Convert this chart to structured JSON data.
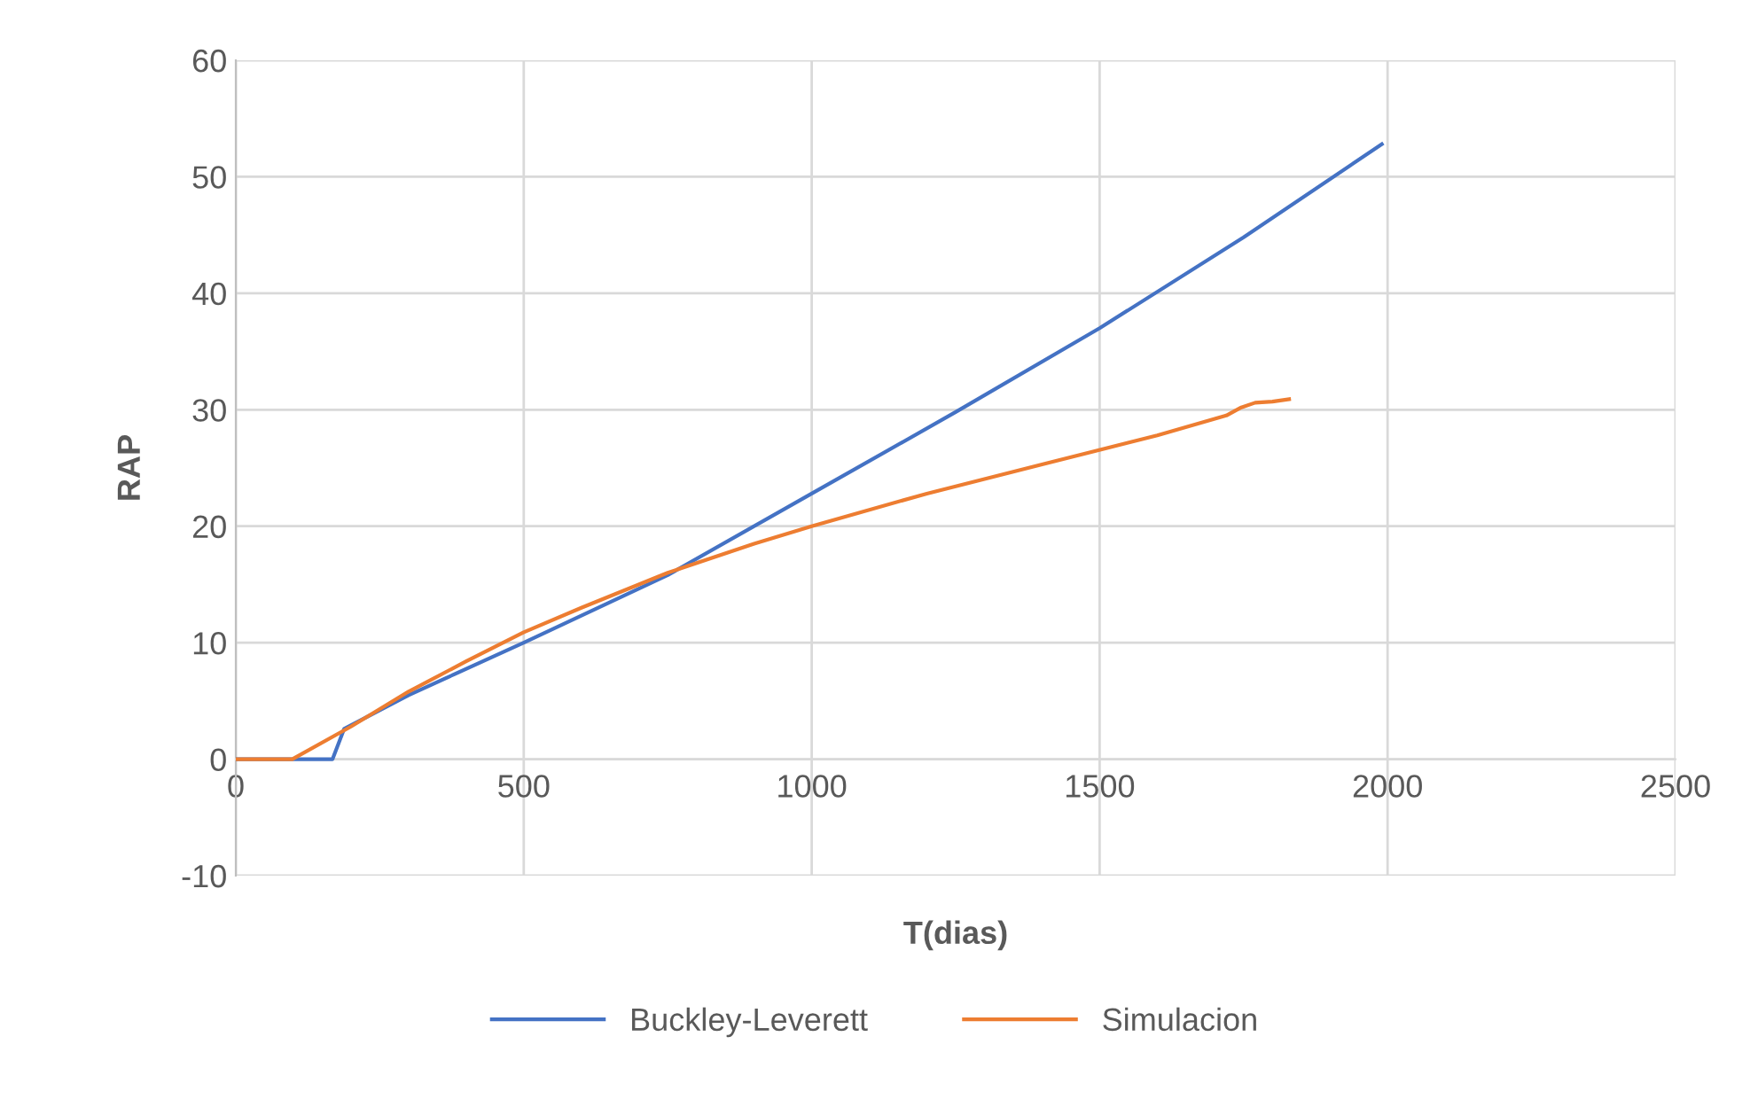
{
  "chart_data": {
    "type": "line",
    "xlabel": "T(dias)",
    "ylabel": "RAP",
    "xlim": [
      0,
      2500
    ],
    "xticks": [
      0,
      500,
      1000,
      1500,
      2000,
      2500
    ],
    "ylim": [
      -10,
      60
    ],
    "yticks": [
      -10,
      0,
      10,
      20,
      30,
      40,
      50,
      60
    ],
    "grid": true,
    "legend": "bottom",
    "marker": "none",
    "line_style": "solid",
    "series": [
      {
        "name": "Buckley-Leverett",
        "color": "#4472c4",
        "x": [
          0,
          168,
          188,
          300,
          500,
          750,
          1000,
          1250,
          1500,
          1750,
          1990
        ],
        "values": [
          0,
          0,
          2.6,
          5.5,
          10,
          15.8,
          22.8,
          29.8,
          37,
          44.8,
          52.8
        ]
      },
      {
        "name": "Simulacion",
        "color": "#ed7d31",
        "x": [
          0,
          98,
          200,
          250,
          300,
          400,
          500,
          600,
          750,
          900,
          1000,
          1200,
          1400,
          1600,
          1720,
          1746,
          1770,
          1800,
          1829
        ],
        "values": [
          0,
          0,
          2.8,
          4.3,
          5.8,
          8.4,
          10.9,
          13,
          16,
          18.5,
          20,
          22.8,
          25.3,
          27.8,
          29.5,
          30.2,
          30.6,
          30.7,
          30.9
        ]
      }
    ]
  }
}
